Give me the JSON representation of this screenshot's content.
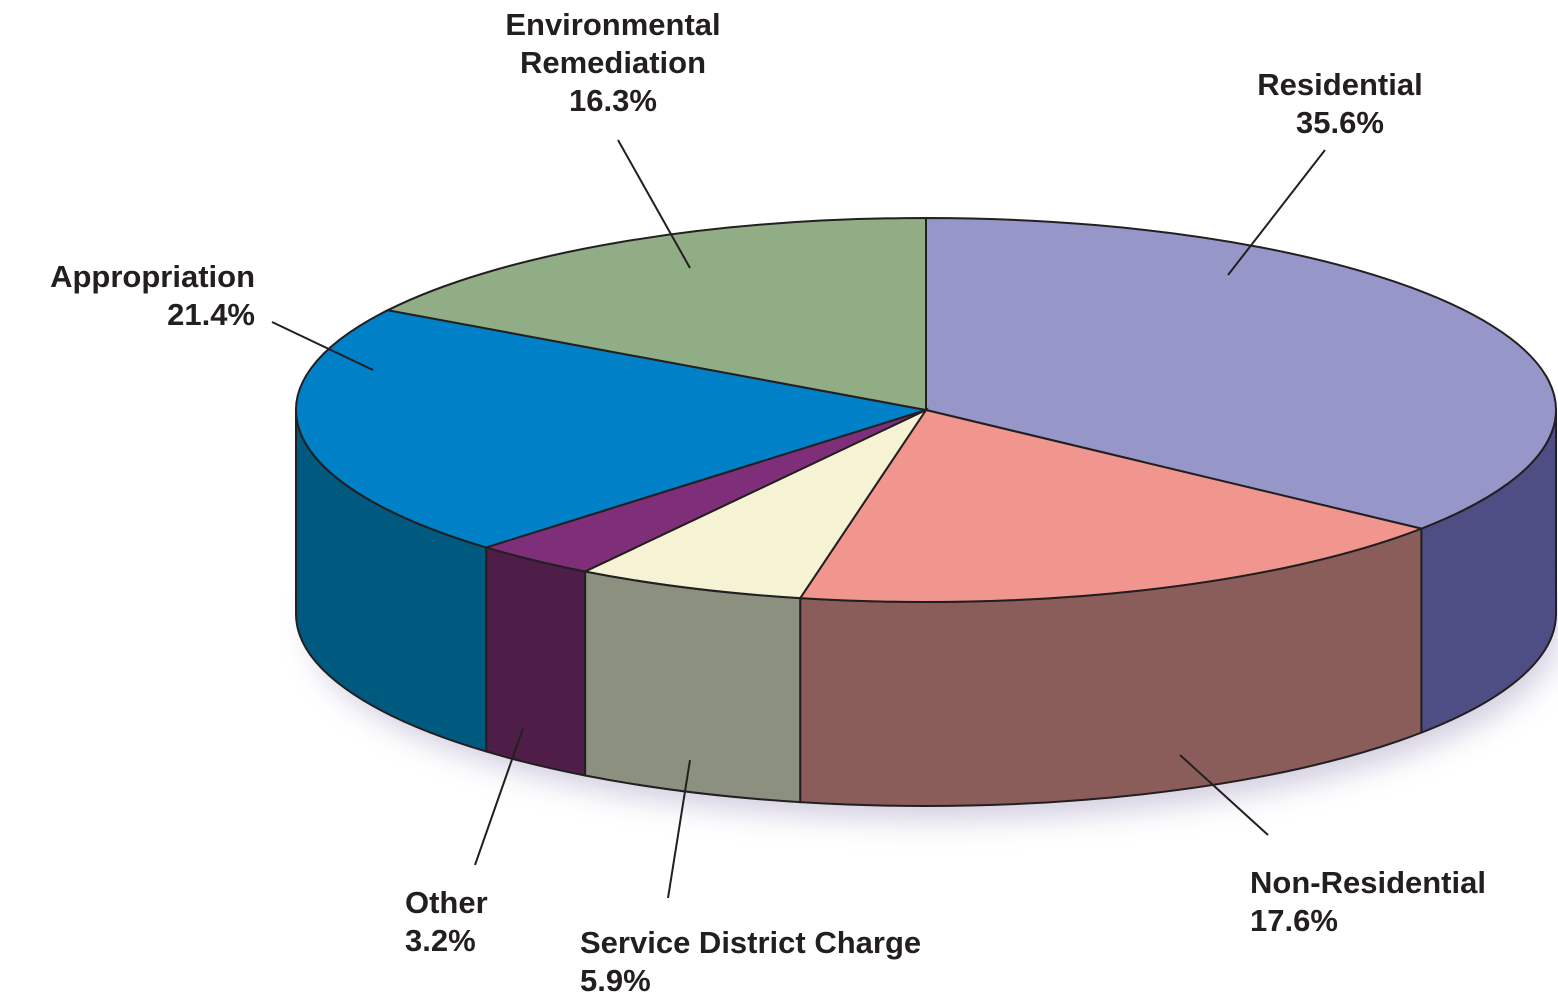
{
  "chart_data": {
    "type": "pie3d",
    "categories": [
      "Residential",
      "Non-Residential",
      "Service District Charge",
      "Other",
      "Appropriation",
      "Environmental Remediation"
    ],
    "values": [
      35.6,
      17.6,
      5.9,
      3.2,
      21.4,
      16.3
    ],
    "value_labels": [
      "35.6%",
      "17.6%",
      "5.9%",
      "3.2%",
      "21.4%",
      "16.3%"
    ],
    "colors": [
      "#9696c8",
      "#f0968f",
      "#f5f3d4",
      "#7f2e7a",
      "#0080c6",
      "#90ad86"
    ],
    "side_colors": [
      "#4e4e84",
      "#8b5d5a",
      "#8c907f",
      "#4e1e48",
      "#005a80",
      "#5f7a57"
    ]
  }
}
